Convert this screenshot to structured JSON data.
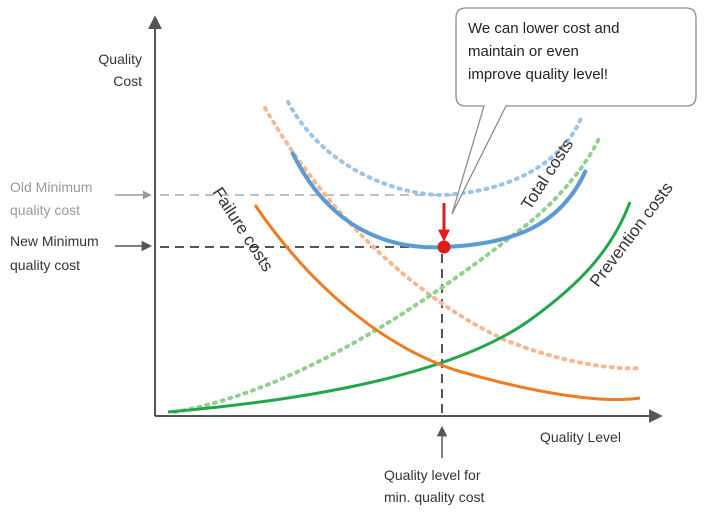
{
  "axes": {
    "y_label_line1": "Quality",
    "y_label_line2": "Cost",
    "x_label": "Quality Level"
  },
  "levels": {
    "old_line1": "Old Minimum",
    "old_line2": "quality cost",
    "new_line1": "New Minimum",
    "new_line2": "quality cost"
  },
  "curves": {
    "failure": "Failure costs",
    "total": "Total costs",
    "prevention": "Prevention costs"
  },
  "callout": {
    "line1": "We can lower cost and",
    "line2": "maintain or even",
    "line3": "improve quality level!"
  },
  "bottom_note": {
    "line1": "Quality level for",
    "line2": "min. quality cost"
  },
  "colors": {
    "failure": "#ef7b22",
    "prevention": "#22a64a",
    "total": "#5b9bd5",
    "total_old": "#9dc3e6",
    "failure_old": "#f6b893",
    "prevention_old": "#93cf8f",
    "marker": "#e01b1b",
    "axis": "#555555"
  }
}
